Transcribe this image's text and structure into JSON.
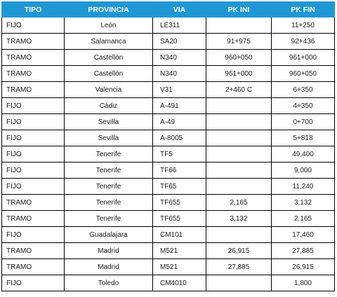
{
  "table": {
    "headers": [
      "TIPO",
      "PROVINCIA",
      "VIA",
      "PK INI",
      "PK FIN"
    ],
    "rows": [
      {
        "tipo": "FIJO",
        "provincia": "León",
        "via": "LE311",
        "pk_ini": "",
        "pk_fin": "11+250"
      },
      {
        "tipo": "TRAMO",
        "provincia": "Salamanca",
        "via": "SA20",
        "pk_ini": "91+975",
        "pk_fin": "92+436"
      },
      {
        "tipo": "TRAMO",
        "provincia": "Castellón",
        "via": "N340",
        "pk_ini": "960+050",
        "pk_fin": "961+000"
      },
      {
        "tipo": "TRAMO",
        "provincia": "Castellón",
        "via": "N340",
        "pk_ini": "961+000",
        "pk_fin": "960+050"
      },
      {
        "tipo": "TRAMO",
        "provincia": "Valencia",
        "via": "V31",
        "pk_ini": "2+460 C",
        "pk_fin": "6+350"
      },
      {
        "tipo": "FIJO",
        "provincia": "Cádiz",
        "via": "A-491",
        "pk_ini": "",
        "pk_fin": "4+350"
      },
      {
        "tipo": "FIJO",
        "provincia": "Sevilla",
        "via": "A-49",
        "pk_ini": "",
        "pk_fin": "0+700"
      },
      {
        "tipo": "FIJO",
        "provincia": "Sevilla",
        "via": "A-8005",
        "pk_ini": "",
        "pk_fin": "5+818"
      },
      {
        "tipo": "FIJO",
        "provincia": "Tenerife",
        "via": "TF5",
        "pk_ini": "",
        "pk_fin": "49,400"
      },
      {
        "tipo": "FIJO",
        "provincia": "Tenerife",
        "via": "TF66",
        "pk_ini": "",
        "pk_fin": "9,000"
      },
      {
        "tipo": "FIJO",
        "provincia": "Tenerife",
        "via": "TF65",
        "pk_ini": "",
        "pk_fin": "11,240"
      },
      {
        "tipo": "TRAMO",
        "provincia": "Tenerife",
        "via": "TF655",
        "pk_ini": "2,165",
        "pk_fin": "3,132"
      },
      {
        "tipo": "TRAMO",
        "provincia": "Tenerife",
        "via": "TF655",
        "pk_ini": "3,132",
        "pk_fin": "2,165"
      },
      {
        "tipo": "FIJO",
        "provincia": "Guadalajara",
        "via": "CM101",
        "pk_ini": "",
        "pk_fin": "17,460"
      },
      {
        "tipo": "TRAMO",
        "provincia": "Madrid",
        "via": "M521",
        "pk_ini": "26,915",
        "pk_fin": "27,885"
      },
      {
        "tipo": "TRAMO",
        "provincia": "Madrid",
        "via": "M521",
        "pk_ini": "27,885",
        "pk_fin": "26,915"
      },
      {
        "tipo": "FIJO",
        "provincia": "Toledo",
        "via": "CM4010",
        "pk_ini": "",
        "pk_fin": "1,800"
      }
    ]
  },
  "colors": {
    "header_background": "#1f97d4",
    "header_text": "#ffffff",
    "grid_lines": "#000000"
  }
}
